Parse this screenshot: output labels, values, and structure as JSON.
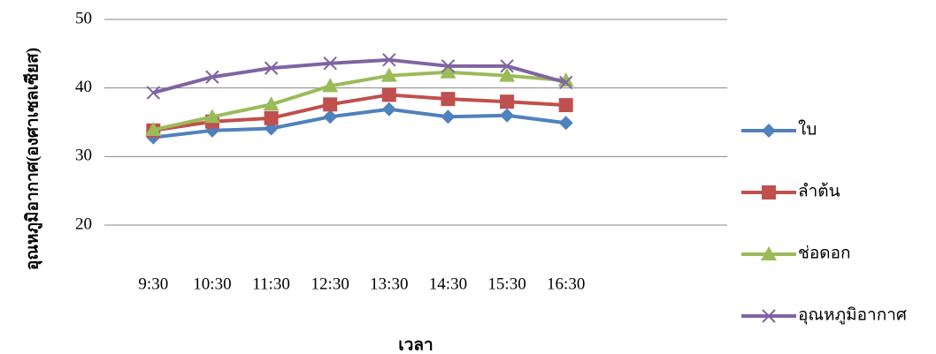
{
  "chart_data": {
    "type": "line",
    "x_label": "เวลา",
    "y_label": "อุณหภูมิอากาศ(องศาเซลเซียส)",
    "categories": [
      "9:30",
      "10:30",
      "11:30",
      "12:30",
      "13:30",
      "14:30",
      "15:30",
      "16:30"
    ],
    "series": [
      {
        "name": "ใบ",
        "color": "#4f81bd",
        "marker": "diamond",
        "values": [
          32.8,
          33.8,
          34.1,
          35.8,
          36.9,
          35.8,
          36,
          34.9
        ]
      },
      {
        "name": "ลำต้น",
        "color": "#c0504d",
        "marker": "square",
        "values": [
          33.8,
          35.1,
          35.6,
          37.6,
          39,
          38.4,
          38,
          37.5
        ]
      },
      {
        "name": "ช่อดอก",
        "color": "#9bbb59",
        "marker": "triangle",
        "values": [
          33.9,
          35.8,
          37.6,
          40.3,
          41.8,
          42.3,
          41.8,
          41.1
        ]
      },
      {
        "name": "อุณหภูมิอากาศ",
        "color": "#8064a2",
        "marker": "x",
        "values": [
          39.3,
          41.6,
          42.9,
          43.6,
          44.1,
          43.2,
          43.2,
          40.8
        ]
      }
    ],
    "ylim": [
      20,
      50
    ],
    "yticks": [
      20,
      30,
      40,
      50
    ],
    "grid": true,
    "legend": "right"
  }
}
